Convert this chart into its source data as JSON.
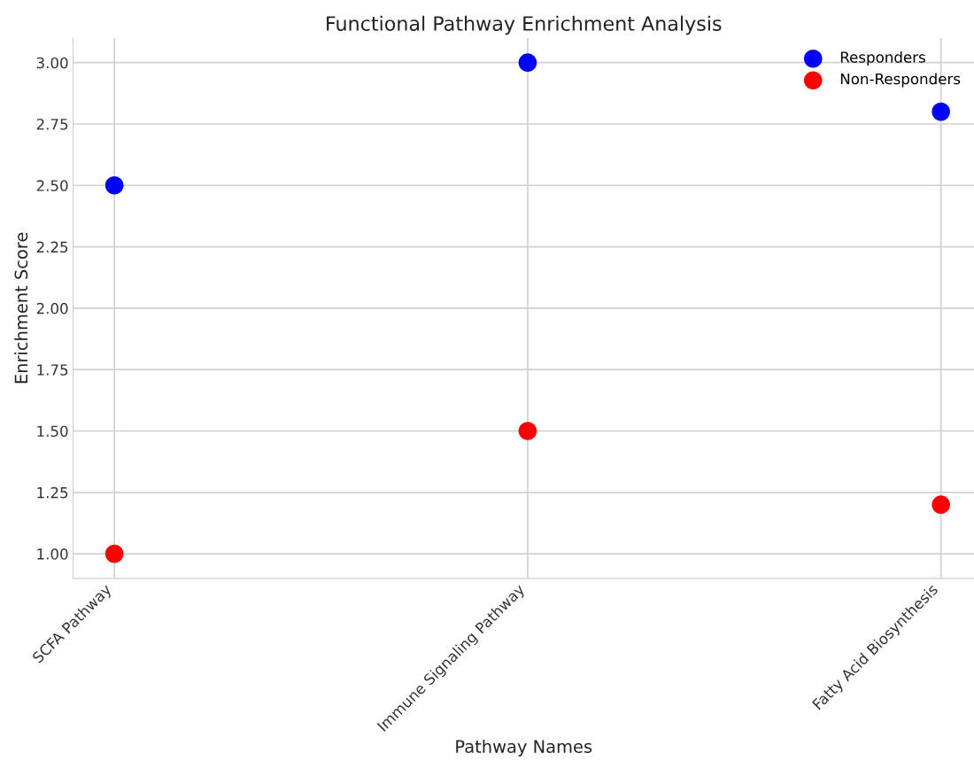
{
  "chart_data": {
    "type": "scatter",
    "title": "Functional Pathway Enrichment Analysis",
    "xlabel": "Pathway Names",
    "ylabel": "Enrichment Score",
    "categories": [
      "SCFA Pathway",
      "Immune Signaling Pathway",
      "Fatty Acid Biosynthesis"
    ],
    "series": [
      {
        "name": "Responders",
        "color": "#0000ff",
        "values": [
          2.5,
          3.0,
          2.8
        ]
      },
      {
        "name": "Non-Responders",
        "color": "#ff0000",
        "values": [
          1.0,
          1.5,
          1.2
        ]
      }
    ],
    "ylim": [
      0.9,
      3.1
    ],
    "yticks": [
      {
        "value": 1.0,
        "label": "1.00"
      },
      {
        "value": 1.25,
        "label": "1.25"
      },
      {
        "value": 1.5,
        "label": "1.50"
      },
      {
        "value": 1.75,
        "label": "1.75"
      },
      {
        "value": 2.0,
        "label": "2.00"
      },
      {
        "value": 2.25,
        "label": "2.25"
      },
      {
        "value": 2.5,
        "label": "2.50"
      },
      {
        "value": 2.75,
        "label": "2.75"
      },
      {
        "value": 3.0,
        "label": "3.00"
      }
    ],
    "grid": true,
    "legend": "top right",
    "marker": "circle"
  }
}
